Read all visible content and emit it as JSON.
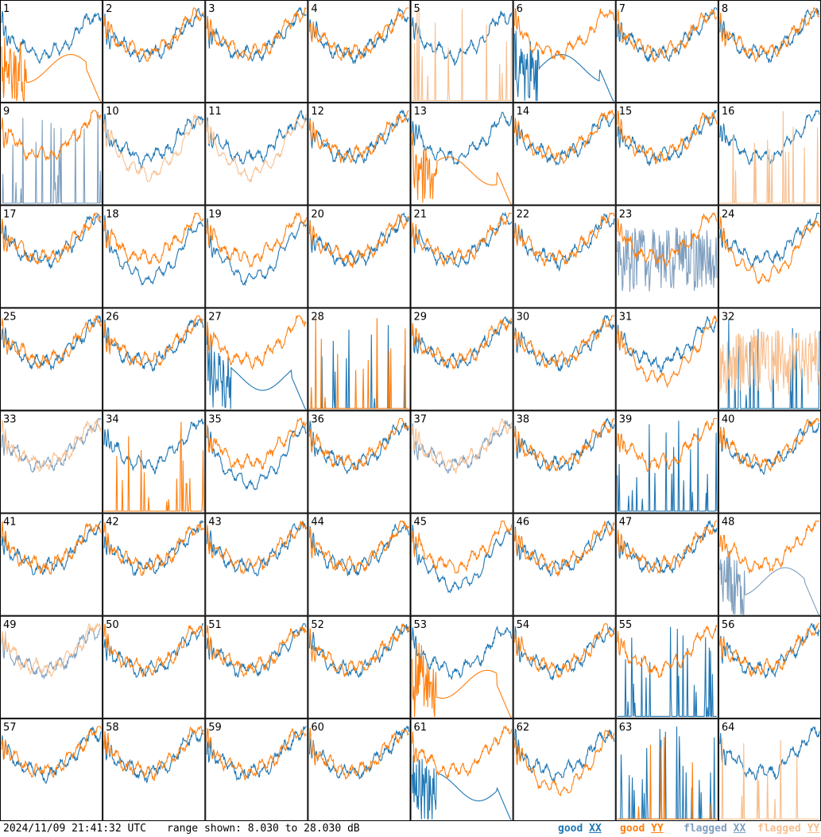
{
  "footer": {
    "timestamp": "2024/11/09 21:41:32 UTC",
    "range_text": "range shown: 8.030 to 28.030 dB"
  },
  "legend": [
    {
      "key": "good_xx",
      "word": "good",
      "pol": "XX",
      "color": "#1f77b4"
    },
    {
      "key": "good_yy",
      "word": "good",
      "pol": "YY",
      "color": "#ff7f0e"
    },
    {
      "key": "flagged_xx",
      "word": "flagged",
      "pol": "XX",
      "color": "#7f9fbf"
    },
    {
      "key": "flagged_yy",
      "word": "flagged",
      "pol": "YY",
      "color": "#f8bf8f"
    }
  ],
  "chart_data": {
    "type": "line",
    "layout": "small-multiples 8x8",
    "ylim_db": [
      8.03,
      28.03
    ],
    "x_axis": "frequency channel (unlabeled)",
    "panel_labels": [
      "1",
      "2",
      "3",
      "4",
      "5",
      "6",
      "7",
      "8",
      "9",
      "10",
      "11",
      "12",
      "13",
      "14",
      "15",
      "16",
      "17",
      "18",
      "19",
      "20",
      "21",
      "22",
      "23",
      "24",
      "25",
      "26",
      "27",
      "28",
      "29",
      "30",
      "31",
      "32",
      "33",
      "34",
      "35",
      "36",
      "37",
      "38",
      "39",
      "40",
      "41",
      "42",
      "43",
      "44",
      "45",
      "46",
      "47",
      "48",
      "49",
      "50",
      "51",
      "52",
      "53",
      "54",
      "55",
      "56",
      "57",
      "58",
      "59",
      "60",
      "61",
      "62",
      "63",
      "64"
    ],
    "series_styles": {
      "good_xx": "#1f77b4",
      "good_yy": "#ff7f0e",
      "flagged_xx": "#7f9fbf",
      "flagged_yy": "#f8bf8f"
    },
    "panels": {
      "1": {
        "xx": "good",
        "xx_shape": "normal",
        "yy": "good",
        "yy_shape": "dropout"
      },
      "2": {
        "xx": "good",
        "yy": "good"
      },
      "3": {
        "xx": "good",
        "yy": "good"
      },
      "4": {
        "xx": "good",
        "yy": "good"
      },
      "5": {
        "xx": "good",
        "yy": "flagged",
        "yy_shape": "spikes"
      },
      "6": {
        "xx": "good",
        "xx_shape": "dropout",
        "yy": "good"
      },
      "7": {
        "xx": "good",
        "yy": "good"
      },
      "8": {
        "xx": "good",
        "yy": "good"
      },
      "9": {
        "xx": "flagged",
        "xx_shape": "spikes",
        "yy": "good"
      },
      "10": {
        "xx": "good",
        "yy": "flagged",
        "yy_shape": "low"
      },
      "11": {
        "xx": "good",
        "yy": "flagged",
        "yy_shape": "low"
      },
      "12": {
        "xx": "good",
        "yy": "good"
      },
      "13": {
        "xx": "good",
        "yy": "good",
        "yy_shape": "dropout"
      },
      "14": {
        "xx": "good",
        "yy": "good"
      },
      "15": {
        "xx": "good",
        "yy": "good"
      },
      "16": {
        "xx": "good",
        "yy": "flagged",
        "yy_shape": "spikes"
      },
      "17": {
        "xx": "good",
        "yy": "good"
      },
      "18": {
        "xx": "good",
        "xx_shape": "low",
        "yy": "good"
      },
      "19": {
        "xx": "good",
        "xx_shape": "low",
        "yy": "good"
      },
      "20": {
        "xx": "good",
        "yy": "good"
      },
      "21": {
        "xx": "good",
        "yy": "good"
      },
      "22": {
        "xx": "good",
        "yy": "good"
      },
      "23": {
        "xx": "flagged",
        "xx_shape": "noisy",
        "yy": "good"
      },
      "24": {
        "xx": "good",
        "yy": "good",
        "yy_shape": "low"
      },
      "25": {
        "xx": "good",
        "yy": "good"
      },
      "26": {
        "xx": "good",
        "yy": "good"
      },
      "27": {
        "xx": "good",
        "xx_shape": "dropout",
        "yy": "good"
      },
      "28": {
        "xx": "good",
        "xx_shape": "spikes",
        "yy": "good",
        "yy_shape": "spikes"
      },
      "29": {
        "xx": "good",
        "yy": "good"
      },
      "30": {
        "xx": "good",
        "yy": "good"
      },
      "31": {
        "xx": "good",
        "yy": "good",
        "yy_shape": "low"
      },
      "32": {
        "xx": "good",
        "xx_shape": "spikes",
        "yy": "flagged",
        "yy_shape": "noisy"
      },
      "33": {
        "xx": "flagged",
        "yy": "flagged"
      },
      "34": {
        "xx": "good",
        "yy": "good",
        "yy_shape": "spikes"
      },
      "35": {
        "xx": "good",
        "xx_shape": "low",
        "yy": "good"
      },
      "36": {
        "xx": "good",
        "yy": "good"
      },
      "37": {
        "xx": "flagged",
        "yy": "flagged"
      },
      "38": {
        "xx": "good",
        "yy": "good"
      },
      "39": {
        "xx": "good",
        "xx_shape": "spikes",
        "yy": "good"
      },
      "40": {
        "xx": "good",
        "yy": "good"
      },
      "41": {
        "xx": "good",
        "yy": "good"
      },
      "42": {
        "xx": "good",
        "yy": "good"
      },
      "43": {
        "xx": "good",
        "yy": "good"
      },
      "44": {
        "xx": "good",
        "yy": "good"
      },
      "45": {
        "xx": "good",
        "xx_shape": "low",
        "yy": "good"
      },
      "46": {
        "xx": "good",
        "yy": "good"
      },
      "47": {
        "xx": "good",
        "yy": "good"
      },
      "48": {
        "xx": "flagged",
        "xx_shape": "dropout",
        "yy": "good"
      },
      "49": {
        "xx": "flagged",
        "yy": "flagged"
      },
      "50": {
        "xx": "good",
        "yy": "good"
      },
      "51": {
        "xx": "good",
        "yy": "good"
      },
      "52": {
        "xx": "good",
        "yy": "good"
      },
      "53": {
        "xx": "good",
        "yy": "good",
        "yy_shape": "dropout"
      },
      "54": {
        "xx": "good",
        "yy": "good"
      },
      "55": {
        "xx": "good",
        "xx_shape": "spikes",
        "yy": "good"
      },
      "56": {
        "xx": "good",
        "yy": "good"
      },
      "57": {
        "xx": "good",
        "yy": "good"
      },
      "58": {
        "xx": "good",
        "yy": "good"
      },
      "59": {
        "xx": "good",
        "yy": "good"
      },
      "60": {
        "xx": "good",
        "yy": "good"
      },
      "61": {
        "xx": "good",
        "xx_shape": "dropout",
        "yy": "good"
      },
      "62": {
        "xx": "good",
        "yy": "good",
        "yy_shape": "low"
      },
      "63": {
        "xx": "good",
        "xx_shape": "spikes",
        "yy": "good",
        "yy_shape": "spikes"
      },
      "64": {
        "xx": "good",
        "yy": "flagged",
        "yy_shape": "spikes"
      }
    }
  }
}
